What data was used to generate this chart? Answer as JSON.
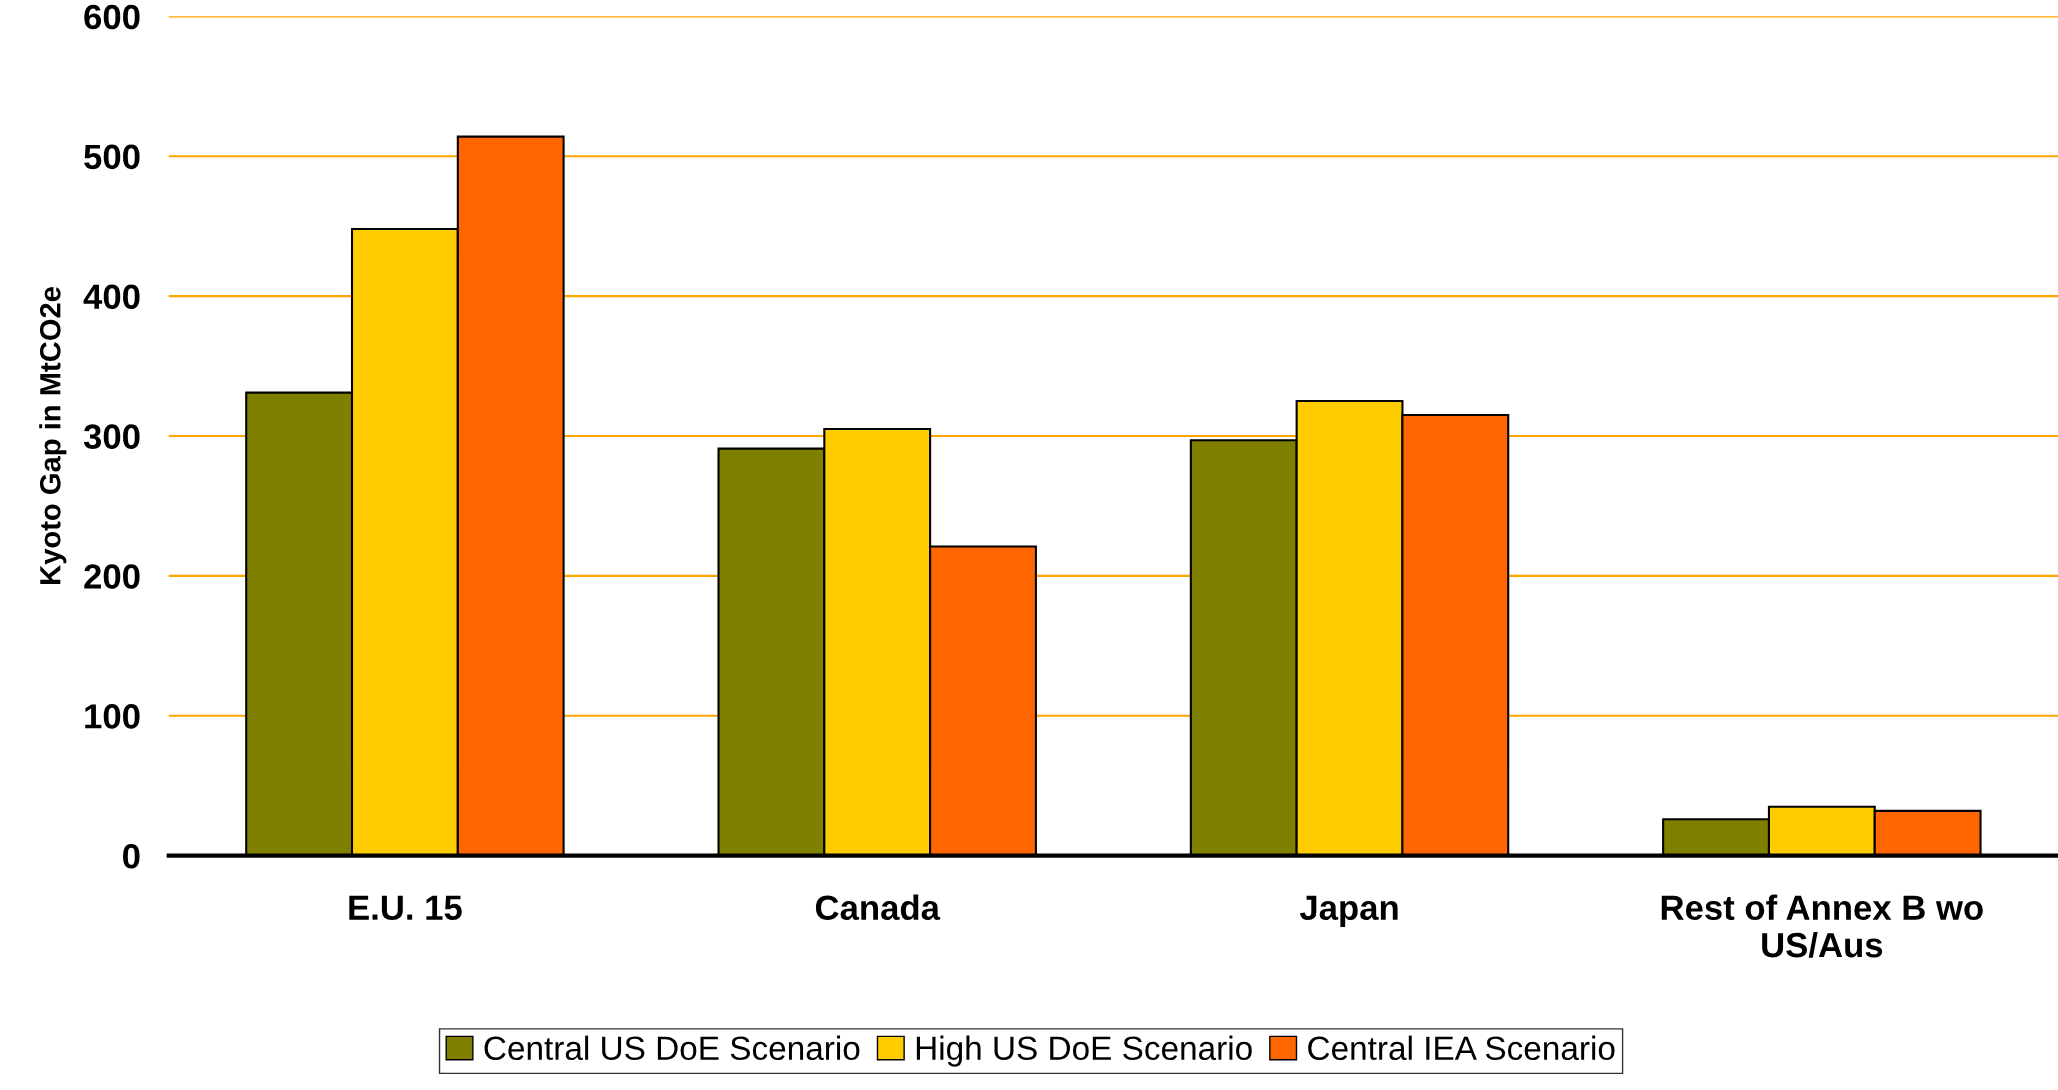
{
  "chart_data": {
    "type": "bar",
    "ylabel": "Kyoto Gap in MtCO2e",
    "categories": [
      "E.U. 15",
      "Canada",
      "Japan",
      "Rest of Annex B wo\nUS/Aus"
    ],
    "series": [
      {
        "name": "Central US DoE Scenario",
        "color": "#808000",
        "values": [
          331,
          291,
          297,
          26
        ]
      },
      {
        "name": "High US DoE Scenario",
        "color": "#ffcc00",
        "values": [
          448,
          305,
          325,
          35
        ]
      },
      {
        "name": "Central IEA Scenario",
        "color": "#ff6600",
        "values": [
          514,
          221,
          315,
          32
        ]
      }
    ],
    "ylim": [
      0,
      600
    ],
    "yticks": [
      0,
      100,
      200,
      300,
      400,
      500,
      600
    ],
    "grid": "y",
    "legend": "bottom"
  }
}
